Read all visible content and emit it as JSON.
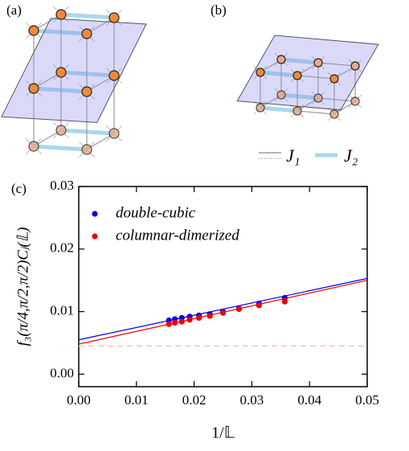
{
  "panels": {
    "a": "(a)",
    "b": "(b)",
    "c": "(c)"
  },
  "lattice_legend": [
    "J₁",
    "J₂"
  ],
  "chart_data": {
    "type": "scatter",
    "xlabel": "1/𝕃",
    "ylabel": "f₃(π/4,π/2,π/2)Cⱼ(𝕃)",
    "xlim": [
      0,
      0.05
    ],
    "ylim": [
      -0.002,
      0.03
    ],
    "xticks": [
      {
        "value": 0,
        "label": "0.00"
      },
      {
        "value": 0.01,
        "label": "0.01"
      },
      {
        "value": 0.02,
        "label": "0.02"
      },
      {
        "value": 0.03,
        "label": "0.03"
      },
      {
        "value": 0.04,
        "label": "0.04"
      },
      {
        "value": 0.05,
        "label": "0.05"
      }
    ],
    "yticks": [
      {
        "value": 0,
        "label": "0.00"
      },
      {
        "value": 0.01,
        "label": "0.01"
      },
      {
        "value": 0.02,
        "label": "0.02"
      },
      {
        "value": 0.03,
        "label": "0.03"
      }
    ],
    "x": [
      0.015625,
      0.016667,
      0.017857,
      0.019231,
      0.020833,
      0.022727,
      0.025,
      0.027778,
      0.03125,
      0.035714
    ],
    "series": [
      {
        "name": "double-cubic",
        "color": "#0000ee",
        "values": [
          0.0086,
          0.0088,
          0.009,
          0.0092,
          0.0094,
          0.0096,
          0.01,
          0.0105,
          0.0113,
          0.0122
        ],
        "fit": {
          "x": [
            0,
            0.05
          ],
          "values": [
            0.0055,
            0.0153
          ]
        }
      },
      {
        "name": "columnar-dimerized",
        "color": "#ee0000",
        "values": [
          0.008,
          0.0082,
          0.0084,
          0.0087,
          0.009,
          0.0093,
          0.0098,
          0.0104,
          0.011,
          0.0116
        ],
        "fit": {
          "x": [
            0,
            0.05
          ],
          "values": [
            0.0048,
            0.015
          ]
        }
      }
    ],
    "reference_line": {
      "value": 0.0045,
      "color": "#f7c6aa"
    },
    "legend": "upper left"
  }
}
